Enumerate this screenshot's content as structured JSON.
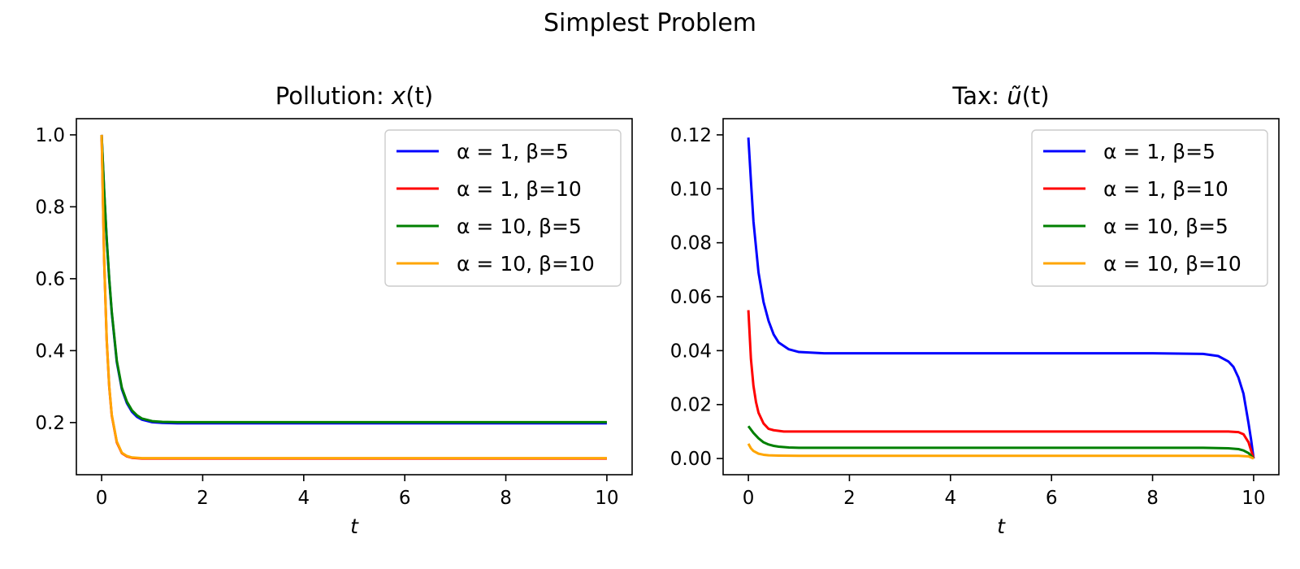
{
  "figure": {
    "suptitle": "Simplest Problem"
  },
  "chart_data": [
    {
      "type": "line",
      "title": "Pollution: x(t)",
      "title_parts": {
        "prefix": "Pollution: ",
        "var": "x",
        "arg": "(t)"
      },
      "xlabel": "t",
      "ylabel": "",
      "xlim": [
        -0.5,
        10.5
      ],
      "ylim": [
        0.055,
        1.045
      ],
      "xticks": [
        0,
        2,
        4,
        6,
        8,
        10
      ],
      "xtick_labels": [
        "0",
        "2",
        "4",
        "6",
        "8",
        "10"
      ],
      "yticks": [
        0.2,
        0.4,
        0.6,
        0.8,
        1.0
      ],
      "ytick_labels": [
        "0.2",
        "0.4",
        "0.6",
        "0.8",
        "1.0"
      ],
      "grid": false,
      "legend_position": "top-right",
      "series": [
        {
          "name": "α = 1, β=5",
          "color": "#0000ff",
          "x": [
            0,
            0.05,
            0.1,
            0.15,
            0.2,
            0.3,
            0.4,
            0.5,
            0.6,
            0.7,
            0.8,
            1.0,
            1.2,
            1.5,
            2,
            3,
            5,
            8,
            10
          ],
          "y": [
            1.0,
            0.842,
            0.709,
            0.598,
            0.506,
            0.368,
            0.293,
            0.254,
            0.23,
            0.216,
            0.208,
            0.201,
            0.199,
            0.198,
            0.198,
            0.198,
            0.198,
            0.198,
            0.198
          ]
        },
        {
          "name": "α = 1, β=10",
          "color": "#ff0000",
          "x": [
            0,
            0.05,
            0.1,
            0.15,
            0.2,
            0.3,
            0.4,
            0.5,
            0.6,
            0.8,
            1.0,
            1.5,
            2,
            5,
            10
          ],
          "y": [
            1.0,
            0.65,
            0.43,
            0.3,
            0.22,
            0.145,
            0.115,
            0.106,
            0.102,
            0.1,
            0.1,
            0.1,
            0.1,
            0.1,
            0.1
          ]
        },
        {
          "name": "α = 10, β=5",
          "color": "#008000",
          "x": [
            0,
            0.05,
            0.1,
            0.15,
            0.2,
            0.3,
            0.4,
            0.5,
            0.6,
            0.7,
            0.8,
            1.0,
            1.2,
            1.5,
            2,
            3,
            5,
            8,
            10
          ],
          "y": [
            1.0,
            0.845,
            0.712,
            0.601,
            0.509,
            0.372,
            0.297,
            0.258,
            0.234,
            0.22,
            0.211,
            0.204,
            0.202,
            0.201,
            0.201,
            0.201,
            0.201,
            0.201,
            0.201
          ]
        },
        {
          "name": "α = 10, β=10",
          "color": "#ffa500",
          "x": [
            0,
            0.05,
            0.1,
            0.15,
            0.2,
            0.3,
            0.4,
            0.5,
            0.6,
            0.8,
            1.0,
            1.5,
            2,
            5,
            10
          ],
          "y": [
            1.0,
            0.652,
            0.432,
            0.302,
            0.222,
            0.147,
            0.116,
            0.107,
            0.103,
            0.101,
            0.101,
            0.101,
            0.101,
            0.101,
            0.101
          ]
        }
      ]
    },
    {
      "type": "line",
      "title": "Tax: ũ(t)",
      "title_parts": {
        "prefix": "Tax: ",
        "var": "ũ",
        "arg": "(t)"
      },
      "xlabel": "t",
      "ylabel": "",
      "xlim": [
        -0.5,
        10.5
      ],
      "ylim": [
        -0.006,
        0.126
      ],
      "xticks": [
        0,
        2,
        4,
        6,
        8,
        10
      ],
      "xtick_labels": [
        "0",
        "2",
        "4",
        "6",
        "8",
        "10"
      ],
      "yticks": [
        0.0,
        0.02,
        0.04,
        0.06,
        0.08,
        0.1,
        0.12
      ],
      "ytick_labels": [
        "0.00",
        "0.02",
        "0.04",
        "0.06",
        "0.08",
        "0.10",
        "0.12"
      ],
      "grid": false,
      "legend_position": "top-right",
      "series": [
        {
          "name": "α = 1, β=5",
          "color": "#0000ff",
          "x": [
            0,
            0.05,
            0.1,
            0.2,
            0.3,
            0.4,
            0.5,
            0.6,
            0.8,
            1.0,
            1.5,
            2,
            5,
            8,
            9.0,
            9.3,
            9.5,
            9.6,
            9.7,
            9.8,
            9.9,
            9.95,
            10
          ],
          "y": [
            0.119,
            0.103,
            0.088,
            0.069,
            0.058,
            0.051,
            0.046,
            0.043,
            0.0405,
            0.0395,
            0.039,
            0.039,
            0.039,
            0.039,
            0.0388,
            0.038,
            0.036,
            0.034,
            0.03,
            0.024,
            0.013,
            0.007,
            0.0
          ]
        },
        {
          "name": "α = 1, β=10",
          "color": "#ff0000",
          "x": [
            0,
            0.05,
            0.1,
            0.15,
            0.2,
            0.3,
            0.4,
            0.5,
            0.7,
            1.0,
            2,
            5,
            9.0,
            9.5,
            9.7,
            9.8,
            9.9,
            9.95,
            10
          ],
          "y": [
            0.055,
            0.037,
            0.027,
            0.021,
            0.017,
            0.013,
            0.011,
            0.0105,
            0.01,
            0.01,
            0.01,
            0.01,
            0.01,
            0.01,
            0.0098,
            0.009,
            0.006,
            0.003,
            0.0
          ]
        },
        {
          "name": "α = 10, β=5",
          "color": "#008000",
          "x": [
            0,
            0.1,
            0.2,
            0.3,
            0.4,
            0.5,
            0.6,
            0.8,
            1.0,
            1.5,
            2,
            5,
            9.0,
            9.5,
            9.7,
            9.8,
            9.9,
            10
          ],
          "y": [
            0.012,
            0.0095,
            0.0075,
            0.006,
            0.0052,
            0.0047,
            0.0044,
            0.0041,
            0.004,
            0.004,
            0.004,
            0.004,
            0.004,
            0.0038,
            0.0035,
            0.003,
            0.002,
            0.0
          ]
        },
        {
          "name": "α = 10, β=10",
          "color": "#ffa500",
          "x": [
            0,
            0.05,
            0.1,
            0.2,
            0.3,
            0.4,
            0.6,
            1.0,
            2,
            5,
            9.0,
            9.7,
            9.9,
            10
          ],
          "y": [
            0.0055,
            0.0038,
            0.0028,
            0.0018,
            0.0014,
            0.0012,
            0.0011,
            0.001,
            0.001,
            0.001,
            0.001,
            0.001,
            0.0008,
            0.0
          ]
        }
      ]
    }
  ]
}
